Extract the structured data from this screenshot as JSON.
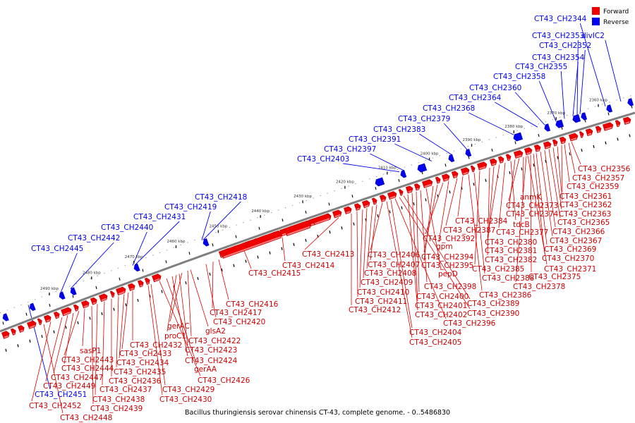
{
  "legend": {
    "forward_label": "Forward",
    "reverse_label": "Reverse",
    "forward_color": "#ee0000",
    "reverse_color": "#0000ee"
  },
  "caption": "Bacillus thuringiensis serovar chinensis CT-43, complete genome. - 0..5486830",
  "colors": {
    "forward": "#ee0000",
    "reverse": "#0000ee",
    "backbone": "#808080"
  },
  "scale": {
    "unit": "kbp",
    "ticks_kbp": [
      2360,
      2370,
      2380,
      2390,
      2400,
      2410,
      2420,
      2430,
      2440,
      2450,
      2460,
      2470,
      2480,
      2490
    ]
  },
  "reverse_labels": [
    "CT43_CH2344",
    "divIC2",
    "CT43_CH2353",
    "CT43_CH2352",
    "CT43_CH2354",
    "CT43_CH2355",
    "CT43_CH2358",
    "CT43_CH2360",
    "CT43_CH2364",
    "CT43_CH2368",
    "CT43_CH2379",
    "CT43_CH2383",
    "CT43_CH2391",
    "CT43_CH2397",
    "CT43_CH2403",
    "CT43_CH2418",
    "CT43_CH2419",
    "CT43_CH2431",
    "CT43_CH2440",
    "CT43_CH2442",
    "CT43_CH2445",
    "CT43_CH2451"
  ],
  "forward_labels": [
    "CT43_CH2356",
    "CT43_CH2357",
    "CT43_CH2359",
    "CT43_CH2361",
    "CT43_CH2362",
    "CT43_CH2363",
    "CT43_CH2365",
    "CT43_CH2366",
    "CT43_CH2367",
    "CT43_CH2369",
    "CT43_CH2370",
    "CT43_CH2371",
    "anmK",
    "CT43_CH2373",
    "CT43_CH2374",
    "tdcB",
    "CT43_CH2377",
    "CT43_CH2380",
    "CT43_CH2381",
    "CT43_CH2382",
    "CT43_CH2375",
    "CT43_CH2378",
    "CT43_CH2384",
    "CT43_CH2387",
    "CT43_CH2392",
    "gpm",
    "CT43_CH2394",
    "CT43_CH2395",
    "pepD",
    "CT43_CH2385",
    "CT43_CH2388",
    "CT43_CH2386",
    "CT43_CH2398",
    "CT43_CH2400",
    "CT43_CH2401",
    "CT43_CH2402",
    "CT43_CH2389",
    "CT43_CH2390",
    "CT43_CH2396",
    "CT43_CH2404",
    "CT43_CH2405",
    "CT43_CH2406",
    "CT43_CH2407",
    "CT43_CH2408",
    "CT43_CH2409",
    "CT43_CH2410",
    "CT43_CH2411",
    "CT43_CH2412",
    "CT43_CH2413",
    "CT43_CH2414",
    "CT43_CH2415",
    "CT43_CH2416",
    "CT43_CH2417",
    "CT43_CH2420",
    "gerAC",
    "glsA2",
    "proC1",
    "CT43_CH2422",
    "CT43_CH2423",
    "CT43_CH2424",
    "gerAA",
    "CT43_CH2426",
    "CT43_CH2429",
    "CT43_CH2430",
    "CT43_CH2432",
    "CT43_CH2433",
    "CT43_CH2434",
    "CT43_CH2435",
    "CT43_CH2436",
    "CT43_CH2437",
    "CT43_CH2438",
    "CT43_CH2439",
    "sasP1",
    "CT43_CH2443",
    "CT43_CH2444",
    "CT43_CH2447",
    "CT43_CH2449",
    "CT43_CH2452",
    "CT43_CH2448"
  ]
}
